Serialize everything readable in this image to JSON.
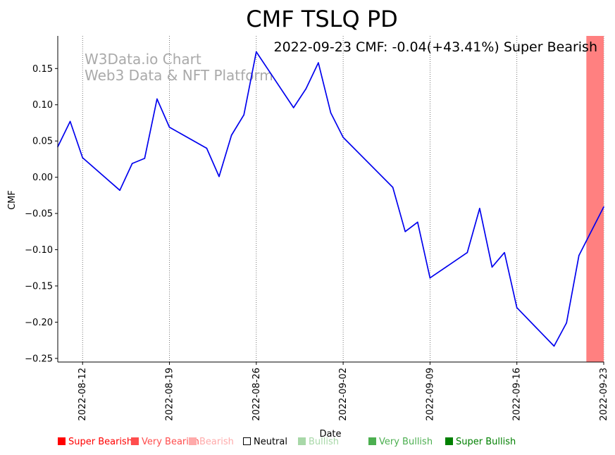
{
  "chart_data": {
    "type": "line",
    "title": "CMF TSLQ PD",
    "xlabel": "Date",
    "ylabel": "CMF",
    "annotation": "2022-09-23 CMF: -0.04(+43.41%) Super Bearish",
    "watermark": [
      "W3Data.io Chart",
      "Web3 Data & NFT Platform"
    ],
    "x_start": "2022-08-10",
    "x_end": "2022-09-23",
    "ylim": [
      -0.255,
      0.195
    ],
    "yticks": [
      0.15,
      0.1,
      0.05,
      0.0,
      -0.05,
      -0.1,
      -0.15,
      -0.2,
      -0.25
    ],
    "ytick_labels": [
      "0.15",
      "0.10",
      "0.05",
      "0.00",
      "−0.05",
      "−0.10",
      "−0.15",
      "−0.20",
      "−0.25"
    ],
    "xticks": [
      "2022-08-12",
      "2022-08-19",
      "2022-08-26",
      "2022-09-02",
      "2022-09-09",
      "2022-09-16",
      "2022-09-23"
    ],
    "series": [
      {
        "name": "CMF",
        "color": "#0000ee",
        "points": [
          {
            "x": "2022-08-10",
            "y": 0.042
          },
          {
            "x": "2022-08-11",
            "y": 0.077
          },
          {
            "x": "2022-08-12",
            "y": 0.027
          },
          {
            "x": "2022-08-15",
            "y": -0.018
          },
          {
            "x": "2022-08-16",
            "y": 0.019
          },
          {
            "x": "2022-08-17",
            "y": 0.026
          },
          {
            "x": "2022-08-18",
            "y": 0.108
          },
          {
            "x": "2022-08-19",
            "y": 0.069
          },
          {
            "x": "2022-08-22",
            "y": 0.04
          },
          {
            "x": "2022-08-23",
            "y": 0.001
          },
          {
            "x": "2022-08-24",
            "y": 0.058
          },
          {
            "x": "2022-08-25",
            "y": 0.086
          },
          {
            "x": "2022-08-26",
            "y": 0.173
          },
          {
            "x": "2022-08-29",
            "y": 0.096
          },
          {
            "x": "2022-08-30",
            "y": 0.122
          },
          {
            "x": "2022-08-31",
            "y": 0.158
          },
          {
            "x": "2022-09-01",
            "y": 0.089
          },
          {
            "x": "2022-09-02",
            "y": 0.055
          },
          {
            "x": "2022-09-06",
            "y": -0.014
          },
          {
            "x": "2022-09-07",
            "y": -0.075
          },
          {
            "x": "2022-09-08",
            "y": -0.062
          },
          {
            "x": "2022-09-09",
            "y": -0.139
          },
          {
            "x": "2022-09-12",
            "y": -0.104
          },
          {
            "x": "2022-09-13",
            "y": -0.043
          },
          {
            "x": "2022-09-14",
            "y": -0.124
          },
          {
            "x": "2022-09-15",
            "y": -0.104
          },
          {
            "x": "2022-09-16",
            "y": -0.18
          },
          {
            "x": "2022-09-19",
            "y": -0.233
          },
          {
            "x": "2022-09-20",
            "y": -0.201
          },
          {
            "x": "2022-09-21",
            "y": -0.108
          },
          {
            "x": "2022-09-23",
            "y": -0.041
          }
        ]
      }
    ],
    "highlight": {
      "from": "2022-09-21.6",
      "to": "2022-09-23",
      "color": "#ff8080",
      "label": "Super Bearish"
    },
    "legend": [
      {
        "label": "Super Bearish",
        "color": "#ff0000",
        "swatch": "#ff0000"
      },
      {
        "label": "Very Bearish",
        "color": "#ff4d4d",
        "swatch": "#ff4d4d"
      },
      {
        "label": "Bearish",
        "color": "#ffaaaa",
        "swatch": "#ffaaaa"
      },
      {
        "label": "Neutral",
        "color": "#000000",
        "swatch": "none"
      },
      {
        "label": "Bullish",
        "color": "#a8d8a8",
        "swatch": "#a8d8a8"
      },
      {
        "label": "Very Bullish",
        "color": "#4caf50",
        "swatch": "#4caf50"
      },
      {
        "label": "Super Bullish",
        "color": "#008000",
        "swatch": "#008000"
      }
    ]
  }
}
